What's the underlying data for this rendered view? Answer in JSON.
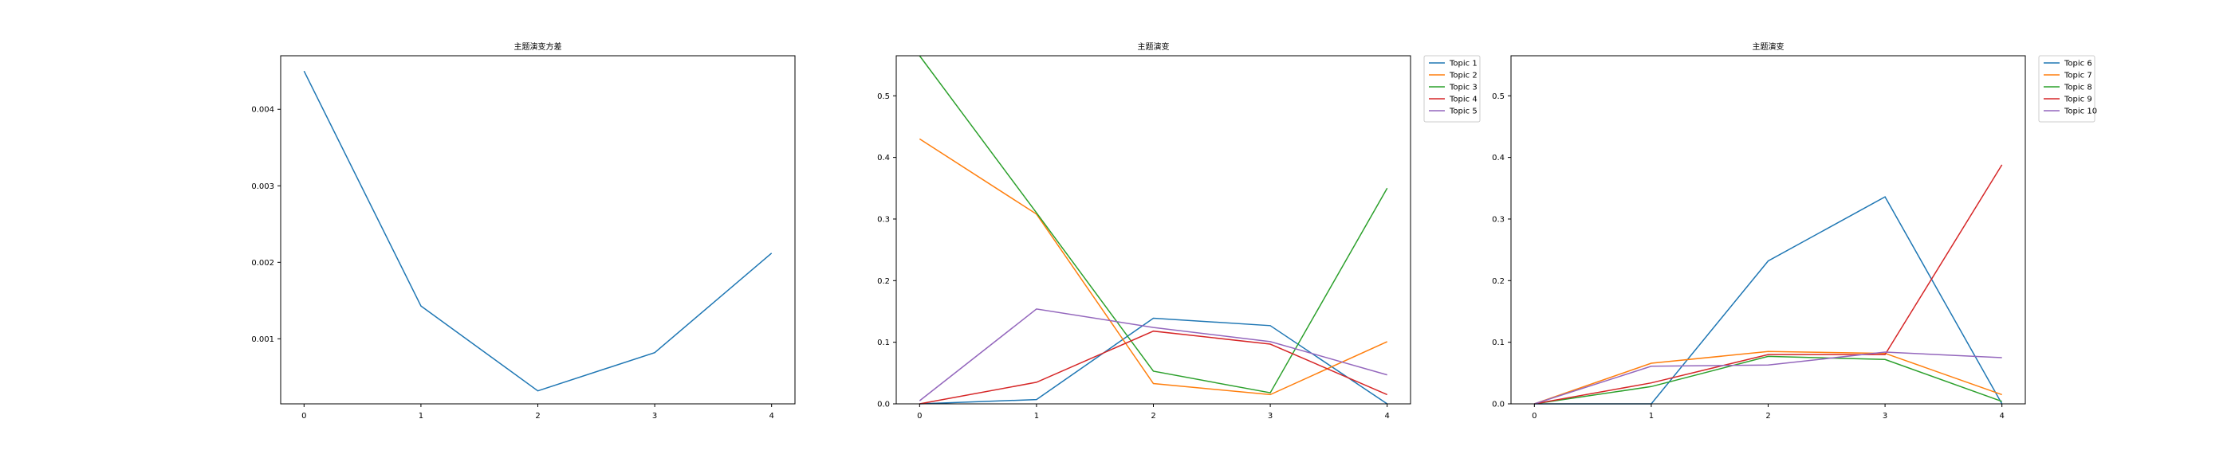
{
  "chart_data": [
    {
      "type": "line",
      "title": "主题演变方差",
      "xlabel": "",
      "ylabel": "",
      "x": [
        0,
        1,
        2,
        3,
        4
      ],
      "xticks": [
        "0",
        "1",
        "2",
        "3",
        "4"
      ],
      "xlim": [
        -0.2,
        4.2
      ],
      "ylim": [
        0.00015,
        0.0047
      ],
      "yticks": [
        "0.001",
        "0.002",
        "0.003",
        "0.004"
      ],
      "ytick_values": [
        0.001,
        0.002,
        0.003,
        0.004
      ],
      "legend": false,
      "series": [
        {
          "values": [
            0.0045,
            0.00143,
            0.00032,
            0.00082,
            0.00212
          ],
          "color": "#1f77b4"
        }
      ]
    },
    {
      "type": "line",
      "title": "主题演变",
      "xlabel": "",
      "ylabel": "",
      "x": [
        0,
        1,
        2,
        3,
        4
      ],
      "xticks": [
        "0",
        "1",
        "2",
        "3",
        "4"
      ],
      "xlim": [
        -0.2,
        4.2
      ],
      "ylim": [
        0,
        0.565
      ],
      "yticks": [
        "0.0",
        "0.1",
        "0.2",
        "0.3",
        "0.4",
        "0.5"
      ],
      "ytick_values": [
        0,
        0.1,
        0.2,
        0.3,
        0.4,
        0.5
      ],
      "legend": true,
      "legend_position": "outside-upper-right",
      "series": [
        {
          "name": "Topic 1",
          "values": [
            0.0,
            0.007,
            0.139,
            0.127,
            0.0
          ],
          "color": "#1f77b4"
        },
        {
          "name": "Topic 2",
          "values": [
            0.43,
            0.308,
            0.033,
            0.015,
            0.101
          ],
          "color": "#ff7f0e"
        },
        {
          "name": "Topic 3",
          "values": [
            0.565,
            0.31,
            0.053,
            0.018,
            0.35
          ],
          "color": "#2ca02c"
        },
        {
          "name": "Topic 4",
          "values": [
            0.0,
            0.035,
            0.118,
            0.097,
            0.015
          ],
          "color": "#d62728"
        },
        {
          "name": "Topic 5",
          "values": [
            0.005,
            0.154,
            0.124,
            0.101,
            0.047
          ],
          "color": "#9467bd"
        }
      ]
    },
    {
      "type": "line",
      "title": "主题演变",
      "xlabel": "",
      "ylabel": "",
      "x": [
        0,
        1,
        2,
        3,
        4
      ],
      "xticks": [
        "0",
        "1",
        "2",
        "3",
        "4"
      ],
      "xlim": [
        -0.2,
        4.2
      ],
      "ylim": [
        0,
        0.565
      ],
      "yticks": [
        "0.0",
        "0.1",
        "0.2",
        "0.3",
        "0.4",
        "0.5"
      ],
      "ytick_values": [
        0,
        0.1,
        0.2,
        0.3,
        0.4,
        0.5
      ],
      "legend": true,
      "legend_position": "outside-upper-right",
      "series": [
        {
          "name": "Topic 6",
          "values": [
            0.0,
            0.0,
            0.232,
            0.336,
            0.0
          ],
          "color": "#1f77b4"
        },
        {
          "name": "Topic 7",
          "values": [
            0.0,
            0.066,
            0.085,
            0.082,
            0.015
          ],
          "color": "#ff7f0e"
        },
        {
          "name": "Topic 8",
          "values": [
            0.0,
            0.028,
            0.077,
            0.072,
            0.004
          ],
          "color": "#2ca02c"
        },
        {
          "name": "Topic 9",
          "values": [
            0.0,
            0.034,
            0.08,
            0.08,
            0.388
          ],
          "color": "#d62728"
        },
        {
          "name": "Topic 10",
          "values": [
            0.0,
            0.061,
            0.063,
            0.084,
            0.075
          ],
          "color": "#9467bd"
        }
      ]
    }
  ]
}
